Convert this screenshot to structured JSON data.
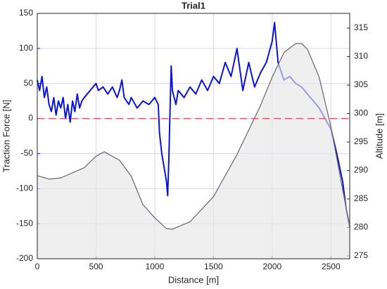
{
  "chart_data": {
    "type": "line",
    "title": "Trial1",
    "xlabel": "Distance [m]",
    "ylabel": "Traction Force [N]",
    "y2label": "Altitude [m]",
    "xlim": [
      0,
      2660
    ],
    "xticks": [
      0,
      500,
      1000,
      1500,
      2000,
      2500
    ],
    "ylim": [
      -200,
      150
    ],
    "yticks": [
      -200,
      -150,
      -100,
      -50,
      0,
      50,
      100,
      150
    ],
    "y2lim": [
      274.5,
      317.6
    ],
    "y2ticks": [
      275,
      280,
      285,
      290,
      295,
      300,
      305,
      310,
      315
    ],
    "grid": true,
    "reference_line": {
      "y": 0,
      "color": "#e8505b"
    },
    "series": [
      {
        "color": "#0a14d6",
        "axis": "y",
        "x": [
          0,
          20,
          40,
          60,
          80,
          100,
          120,
          140,
          160,
          180,
          200,
          220,
          240,
          260,
          280,
          300,
          320,
          340,
          360,
          380,
          400,
          450,
          500,
          520,
          560,
          600,
          640,
          680,
          700,
          720,
          740,
          780,
          800,
          850,
          900,
          950,
          1000,
          1030,
          1040,
          1060,
          1080,
          1100,
          1110,
          1120,
          1130,
          1140,
          1150,
          1180,
          1200,
          1250,
          1300,
          1350,
          1400,
          1450,
          1500,
          1550,
          1600,
          1650,
          1700,
          1750,
          1800,
          1850,
          1900,
          1950,
          2000,
          2020,
          2050,
          2100,
          2150,
          2200,
          2250,
          2300,
          2350,
          2400,
          2450,
          2500,
          2550,
          2600,
          2630,
          2660
        ],
        "values": [
          55,
          40,
          60,
          30,
          45,
          20,
          10,
          30,
          5,
          25,
          15,
          30,
          0,
          20,
          -5,
          25,
          10,
          35,
          15,
          25,
          30,
          40,
          50,
          40,
          45,
          35,
          45,
          30,
          40,
          55,
          30,
          20,
          30,
          15,
          25,
          20,
          30,
          20,
          -20,
          -50,
          -70,
          -90,
          -110,
          -60,
          10,
          75,
          40,
          20,
          40,
          30,
          45,
          35,
          55,
          40,
          60,
          50,
          80,
          60,
          100,
          40,
          80,
          45,
          65,
          80,
          110,
          137,
          80,
          55,
          60,
          50,
          45,
          35,
          25,
          15,
          0,
          -15,
          -50,
          -90,
          -130,
          -155
        ]
      },
      {
        "color": "#666666",
        "axis": "y2",
        "fill": "#e6e6e6",
        "x": [
          0,
          100,
          200,
          400,
          500,
          570,
          700,
          800,
          900,
          1000,
          1100,
          1150,
          1300,
          1500,
          1700,
          1900,
          2000,
          2100,
          2200,
          2250,
          2300,
          2400,
          2500,
          2600,
          2660
        ],
        "values": [
          289.1,
          288.5,
          288.7,
          290.5,
          292.5,
          293.3,
          291.8,
          289,
          284,
          281.7,
          279.8,
          279.7,
          281,
          285.4,
          292.8,
          301.4,
          306.4,
          310.7,
          312.3,
          312.3,
          311.3,
          306.4,
          297.7,
          286.6,
          280.4
        ]
      }
    ]
  }
}
